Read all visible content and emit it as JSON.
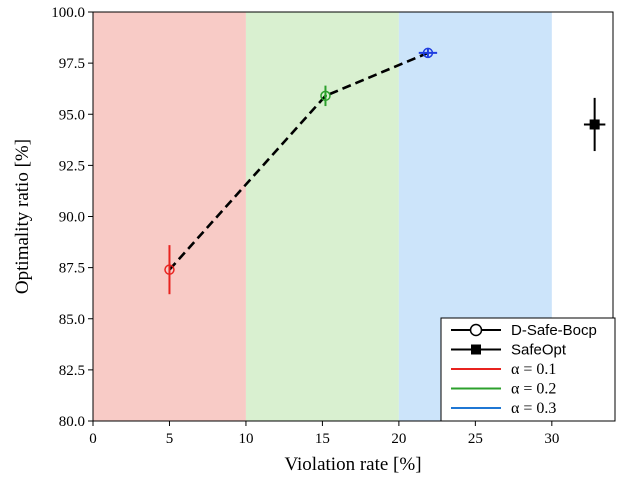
{
  "chart_data": {
    "type": "scatter",
    "title": "",
    "xlabel": "Violation rate [%]",
    "ylabel": "Optimality ratio [%]",
    "xlim": [
      0,
      34
    ],
    "ylim": [
      80,
      100
    ],
    "xticks": [
      0,
      5,
      10,
      15,
      20,
      25,
      30
    ],
    "xtick_labels": [
      "0",
      "5",
      "10",
      "15",
      "20",
      "25",
      "30"
    ],
    "yticks": [
      80,
      82.5,
      85,
      87.5,
      90,
      92.5,
      95,
      97.5,
      100
    ],
    "ytick_labels": [
      "80.0",
      "82.5",
      "85.0",
      "87.5",
      "90.0",
      "92.5",
      "95.0",
      "97.5",
      "100.0"
    ],
    "grid": false,
    "legend_position": "bottom-right",
    "bands": [
      {
        "x0": 0,
        "x1": 10,
        "color": "#f8cbc6"
      },
      {
        "x0": 10,
        "x1": 20,
        "color": "#d9f0d0"
      },
      {
        "x0": 20,
        "x1": 30,
        "color": "#cce4fa"
      }
    ],
    "series": [
      {
        "name": "D-Safe-Bocp",
        "marker": "open-circle",
        "line": "dashed",
        "color": "#000000",
        "points": [
          {
            "x": 5.0,
            "y": 87.4,
            "xerr": 0.0,
            "yerr": 1.2,
            "color": "#e8231f"
          },
          {
            "x": 15.2,
            "y": 95.9,
            "xerr": 0.1,
            "yerr": 0.5,
            "color": "#2ca02c"
          },
          {
            "x": 21.9,
            "y": 98.0,
            "xerr": 0.6,
            "yerr": 0.2,
            "color": "#1f3de0"
          }
        ]
      },
      {
        "name": "SafeOpt",
        "marker": "filled-square",
        "line": "none",
        "color": "#000000",
        "points": [
          {
            "x": 32.8,
            "y": 94.5,
            "xerr": 0.7,
            "yerr": 1.3,
            "color": "#000000"
          }
        ]
      }
    ],
    "legend": [
      {
        "label": "D-Safe-Bocp",
        "kind": "marker-circle",
        "color": "#000000"
      },
      {
        "label": "SafeOpt",
        "kind": "marker-square",
        "color": "#000000"
      },
      {
        "label": "α = 0.1",
        "kind": "line",
        "color": "#e8231f"
      },
      {
        "label": "α = 0.2",
        "kind": "line",
        "color": "#2ca02c"
      },
      {
        "label": "α = 0.3",
        "kind": "line",
        "color": "#1f77d4"
      }
    ]
  }
}
